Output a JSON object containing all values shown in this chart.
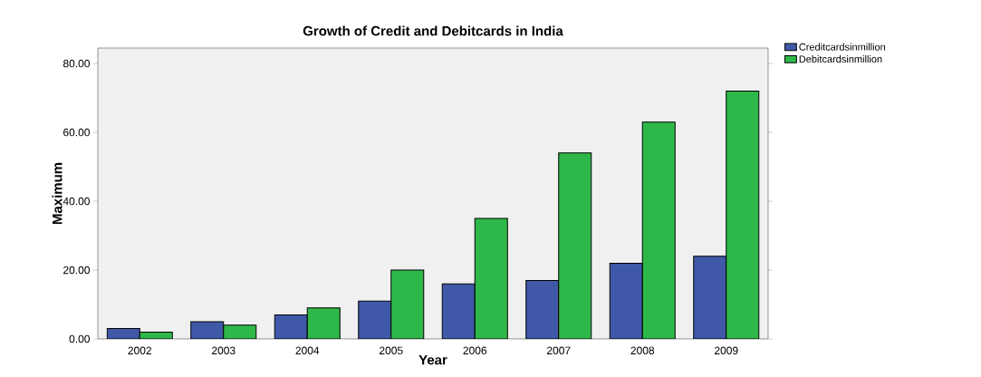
{
  "chart_data": {
    "type": "bar",
    "title": "Growth of Credit and Debitcards in India",
    "xlabel": "Year",
    "ylabel": "Maximum",
    "categories": [
      "2002",
      "2003",
      "2004",
      "2005",
      "2006",
      "2007",
      "2008",
      "2009"
    ],
    "series": [
      {
        "name": "Creditcardsinmillion",
        "color": "#3f58a8",
        "values": [
          3,
          5,
          7,
          11,
          16,
          17,
          22,
          24
        ]
      },
      {
        "name": "Debitcardsinmillion",
        "color": "#2fb84a",
        "values": [
          2,
          4,
          9,
          20,
          35,
          54,
          63,
          72
        ]
      }
    ],
    "ylim": [
      0,
      84.5
    ],
    "yticks": [
      {
        "value": 0,
        "label": "0.00"
      },
      {
        "value": 20,
        "label": "20.00"
      },
      {
        "value": 40,
        "label": "40.00"
      },
      {
        "value": 60,
        "label": "60.00"
      },
      {
        "value": 80,
        "label": "80.00"
      }
    ],
    "grid": false,
    "legend": "top right"
  }
}
